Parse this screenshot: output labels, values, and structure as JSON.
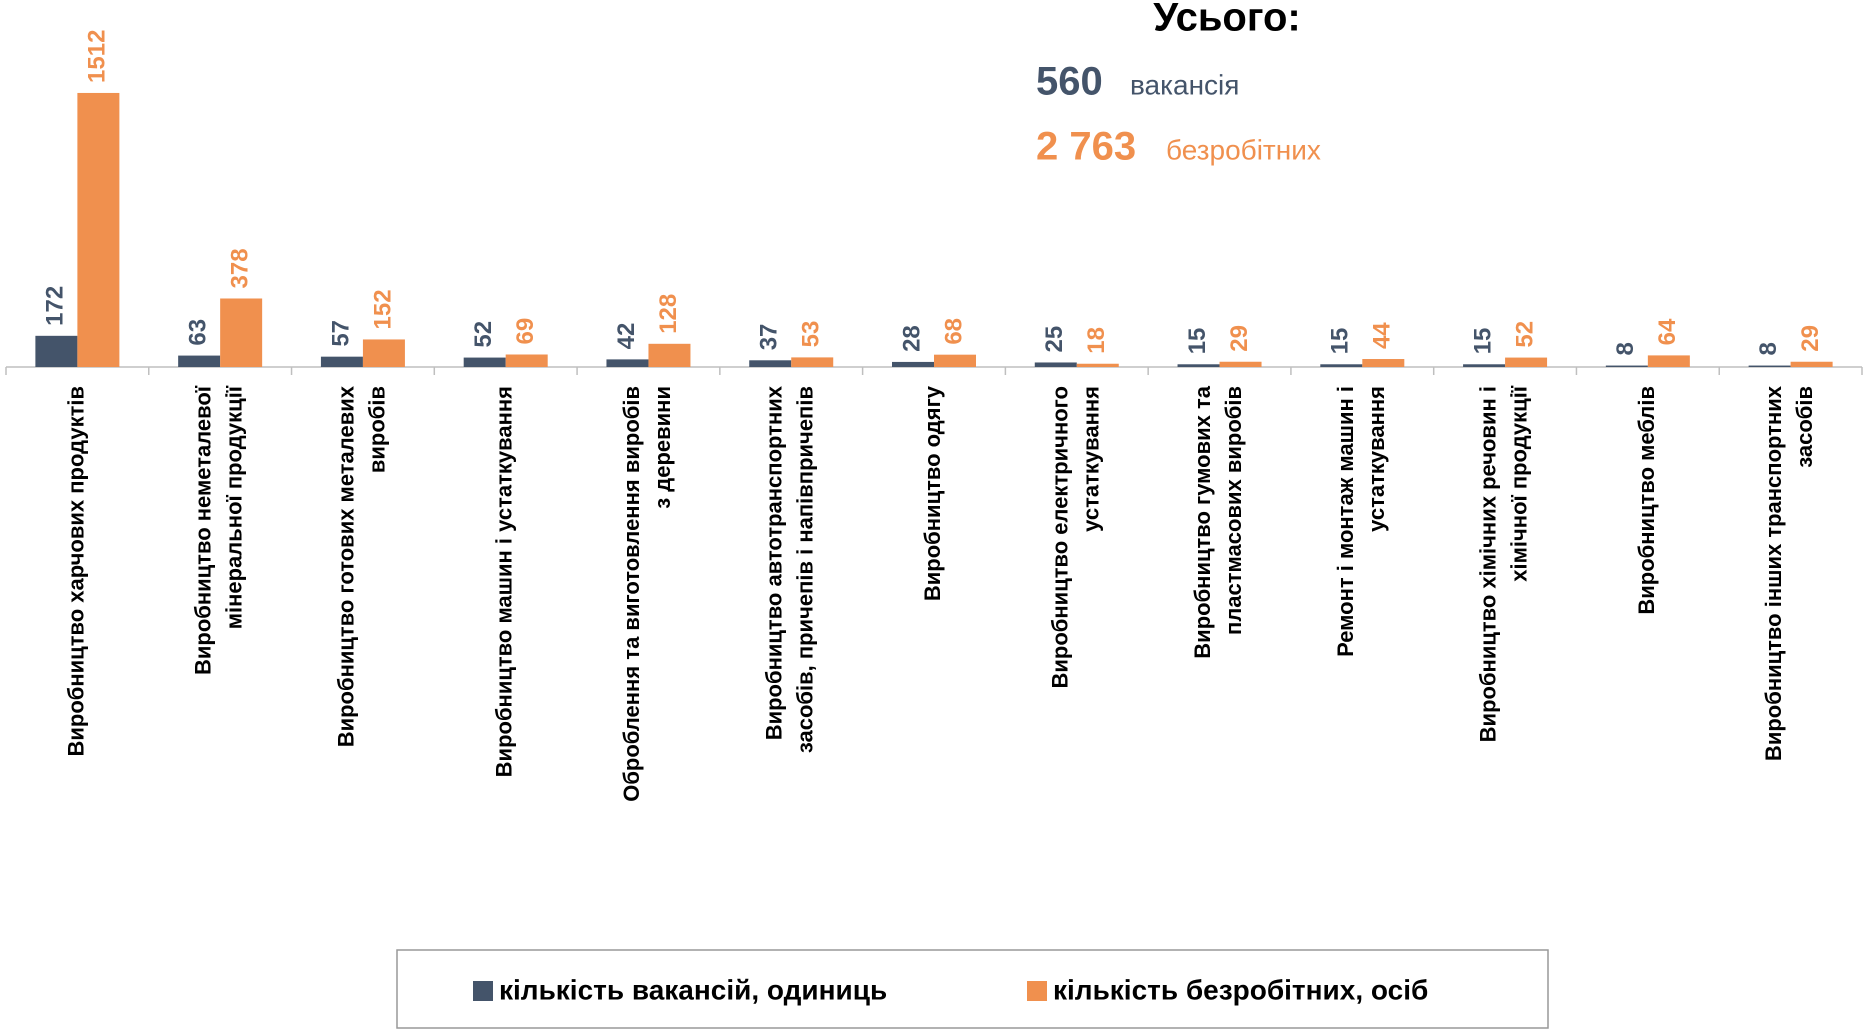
{
  "chart_data": {
    "type": "bar",
    "categories": [
      "Виробництво харчових продуктів",
      "Виробництво неметалевої\nмінеральної продукції",
      "Виробництво готових металевих\nвиробів",
      "Виробництво машин і устаткування",
      "Оброблення  та виготовлення виробів\nз деревини",
      "Виробництво автотранспортних\nзасобів, причепів і напівпричепів",
      "Виробництво одягу",
      "Виробництво електричного\nустаткування",
      "Виробництво гумових та\nпластмасових виробів",
      "Ремонт і монтаж машин і\nустаткування",
      "Виробництво хімічних речовин і\nхімічної продукції",
      "Виробництво меблів",
      "Виробництво інших транспортних\nзасобів"
    ],
    "series": [
      {
        "name": "кількість вакансій, одиниць",
        "color": "#44546a",
        "values": [
          172,
          63,
          57,
          52,
          42,
          37,
          28,
          25,
          15,
          15,
          15,
          8,
          8
        ]
      },
      {
        "name": "кількість безробітних, осіб",
        "color": "#f0904e",
        "values": [
          1512,
          378,
          152,
          69,
          128,
          53,
          68,
          18,
          29,
          44,
          52,
          64,
          29
        ]
      }
    ],
    "ylim": [
      0,
      1600
    ],
    "summary": {
      "title": "Усього:",
      "vacancies": 560,
      "vacancies_unit": "вакансія",
      "unemployed": {
        "value": 2763,
        "label": "2 763"
      },
      "unemployed_unit": "безробітних"
    }
  }
}
